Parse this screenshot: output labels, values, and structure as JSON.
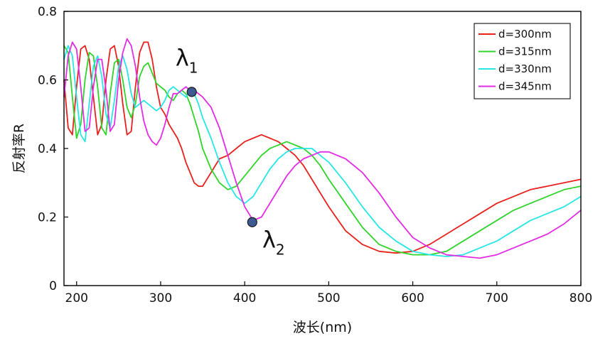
{
  "chart_data": {
    "type": "line",
    "xlabel": "波长(nm)",
    "ylabel": "反射率R",
    "xlim": [
      185,
      800
    ],
    "ylim": [
      0,
      0.8
    ],
    "xticks": [
      200,
      300,
      400,
      500,
      600,
      700,
      800
    ],
    "xtick_labels": [
      "200",
      "300",
      "400",
      "500",
      "600",
      "700",
      "800"
    ],
    "yticks": [
      0,
      0.2,
      0.4,
      0.6,
      0.8
    ],
    "ytick_labels": [
      "0",
      "0.2",
      "0.4",
      "0.6",
      "0.8"
    ],
    "grid": false,
    "legend_position": "top-right",
    "series": [
      {
        "name": "d=300nm",
        "color": "#e8211d",
        "x": [
          185,
          190,
          195,
          200,
          205,
          210,
          215,
          220,
          225,
          230,
          235,
          240,
          245,
          250,
          255,
          260,
          265,
          270,
          275,
          280,
          285,
          290,
          295,
          300,
          305,
          310,
          315,
          320,
          325,
          330,
          335,
          340,
          345,
          350,
          360,
          370,
          380,
          390,
          400,
          410,
          420,
          430,
          440,
          450,
          460,
          470,
          480,
          490,
          500,
          520,
          540,
          560,
          580,
          600,
          620,
          640,
          660,
          680,
          700,
          720,
          740,
          760,
          780,
          800
        ],
        "y": [
          0.6,
          0.46,
          0.44,
          0.58,
          0.69,
          0.7,
          0.66,
          0.55,
          0.44,
          0.47,
          0.6,
          0.69,
          0.7,
          0.64,
          0.53,
          0.44,
          0.45,
          0.58,
          0.68,
          0.71,
          0.71,
          0.66,
          0.58,
          0.52,
          0.5,
          0.47,
          0.45,
          0.43,
          0.4,
          0.36,
          0.33,
          0.3,
          0.29,
          0.29,
          0.33,
          0.37,
          0.38,
          0.4,
          0.42,
          0.43,
          0.44,
          0.43,
          0.42,
          0.4,
          0.38,
          0.35,
          0.31,
          0.27,
          0.23,
          0.16,
          0.12,
          0.1,
          0.095,
          0.1,
          0.12,
          0.15,
          0.18,
          0.21,
          0.24,
          0.26,
          0.28,
          0.29,
          0.3,
          0.31
        ]
      },
      {
        "name": "d=315nm",
        "color": "#2fd42a",
        "x": [
          185,
          190,
          195,
          200,
          205,
          210,
          215,
          220,
          225,
          230,
          235,
          240,
          245,
          250,
          255,
          260,
          265,
          270,
          275,
          280,
          285,
          290,
          295,
          300,
          305,
          310,
          315,
          320,
          325,
          330,
          335,
          340,
          345,
          350,
          360,
          370,
          380,
          390,
          400,
          410,
          420,
          430,
          440,
          450,
          460,
          470,
          480,
          490,
          500,
          520,
          540,
          560,
          580,
          600,
          620,
          640,
          660,
          680,
          700,
          720,
          740,
          760,
          780,
          800
        ],
        "y": [
          0.7,
          0.68,
          0.55,
          0.43,
          0.47,
          0.6,
          0.68,
          0.67,
          0.58,
          0.46,
          0.44,
          0.56,
          0.65,
          0.66,
          0.6,
          0.52,
          0.49,
          0.53,
          0.61,
          0.64,
          0.65,
          0.62,
          0.59,
          0.58,
          0.57,
          0.55,
          0.54,
          0.56,
          0.57,
          0.56,
          0.53,
          0.49,
          0.45,
          0.4,
          0.34,
          0.3,
          0.28,
          0.29,
          0.32,
          0.35,
          0.38,
          0.4,
          0.41,
          0.42,
          0.41,
          0.4,
          0.38,
          0.35,
          0.31,
          0.24,
          0.17,
          0.12,
          0.1,
          0.09,
          0.09,
          0.1,
          0.13,
          0.16,
          0.19,
          0.22,
          0.24,
          0.26,
          0.28,
          0.29
        ]
      },
      {
        "name": "d=330nm",
        "color": "#27e6e6",
        "x": [
          185,
          190,
          195,
          200,
          205,
          210,
          215,
          220,
          225,
          230,
          235,
          240,
          245,
          250,
          255,
          260,
          265,
          270,
          275,
          280,
          285,
          290,
          295,
          300,
          305,
          310,
          315,
          320,
          325,
          330,
          335,
          340,
          345,
          350,
          360,
          370,
          380,
          390,
          400,
          410,
          420,
          430,
          440,
          450,
          460,
          470,
          480,
          490,
          500,
          520,
          540,
          560,
          580,
          600,
          620,
          640,
          660,
          680,
          700,
          720,
          740,
          760,
          780,
          800
        ],
        "y": [
          0.66,
          0.7,
          0.67,
          0.55,
          0.44,
          0.42,
          0.53,
          0.64,
          0.67,
          0.61,
          0.5,
          0.46,
          0.54,
          0.64,
          0.67,
          0.63,
          0.56,
          0.52,
          0.53,
          0.54,
          0.53,
          0.52,
          0.51,
          0.52,
          0.54,
          0.57,
          0.58,
          0.57,
          0.56,
          0.55,
          0.57,
          0.56,
          0.53,
          0.49,
          0.43,
          0.36,
          0.3,
          0.26,
          0.24,
          0.26,
          0.3,
          0.34,
          0.37,
          0.39,
          0.4,
          0.4,
          0.4,
          0.38,
          0.36,
          0.3,
          0.23,
          0.17,
          0.13,
          0.1,
          0.09,
          0.085,
          0.09,
          0.11,
          0.13,
          0.16,
          0.19,
          0.21,
          0.23,
          0.26
        ]
      },
      {
        "name": "d=345nm",
        "color": "#e22de4",
        "x": [
          185,
          190,
          195,
          200,
          205,
          210,
          215,
          220,
          225,
          230,
          235,
          240,
          245,
          250,
          255,
          260,
          265,
          270,
          275,
          280,
          285,
          290,
          295,
          300,
          305,
          310,
          315,
          320,
          325,
          330,
          335,
          340,
          345,
          350,
          360,
          370,
          380,
          390,
          400,
          410,
          420,
          430,
          440,
          450,
          460,
          470,
          480,
          490,
          500,
          520,
          540,
          560,
          580,
          600,
          620,
          640,
          660,
          680,
          700,
          720,
          740,
          760,
          780,
          800
        ],
        "y": [
          0.55,
          0.67,
          0.71,
          0.69,
          0.58,
          0.45,
          0.46,
          0.58,
          0.66,
          0.66,
          0.57,
          0.45,
          0.47,
          0.6,
          0.68,
          0.72,
          0.7,
          0.64,
          0.55,
          0.48,
          0.44,
          0.42,
          0.41,
          0.43,
          0.47,
          0.52,
          0.56,
          0.56,
          0.57,
          0.58,
          0.57,
          0.57,
          0.56,
          0.55,
          0.52,
          0.46,
          0.38,
          0.3,
          0.23,
          0.19,
          0.2,
          0.24,
          0.28,
          0.32,
          0.35,
          0.37,
          0.38,
          0.39,
          0.39,
          0.37,
          0.33,
          0.27,
          0.2,
          0.14,
          0.11,
          0.09,
          0.085,
          0.08,
          0.09,
          0.11,
          0.13,
          0.15,
          0.18,
          0.22
        ]
      }
    ],
    "annotations": [
      {
        "base": "λ",
        "sub": "1",
        "point": [
          337,
          0.565
        ]
      },
      {
        "base": "λ",
        "sub": "2",
        "point": [
          409,
          0.185
        ]
      }
    ],
    "marker_color": "#3e5a93"
  }
}
